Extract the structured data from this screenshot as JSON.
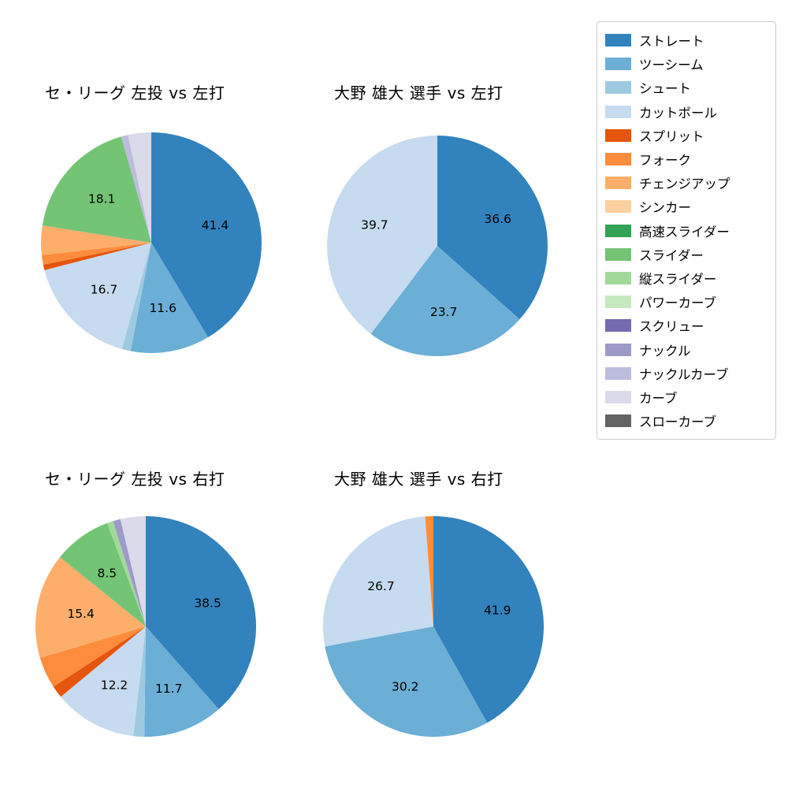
{
  "figure": {
    "background": "#ffffff"
  },
  "legend": {
    "position": "upper right",
    "items": [
      {
        "label": "ストレート",
        "color": "#3182bd"
      },
      {
        "label": "ツーシーム",
        "color": "#6baed6"
      },
      {
        "label": "シュート",
        "color": "#9ecae1"
      },
      {
        "label": "カットボール",
        "color": "#c6dbef"
      },
      {
        "label": "スプリット",
        "color": "#e6550d"
      },
      {
        "label": "フォーク",
        "color": "#fd8d3c"
      },
      {
        "label": "チェンジアップ",
        "color": "#fdae6b"
      },
      {
        "label": "シンカー",
        "color": "#fdd0a2"
      },
      {
        "label": "高速スライダー",
        "color": "#31a354"
      },
      {
        "label": "スライダー",
        "color": "#74c476"
      },
      {
        "label": "縦スライダー",
        "color": "#a1d99b"
      },
      {
        "label": "パワーカーブ",
        "color": "#c7e9c0"
      },
      {
        "label": "スクリュー",
        "color": "#756bb1"
      },
      {
        "label": "ナックル",
        "color": "#9e9ac8"
      },
      {
        "label": "ナックルカーブ",
        "color": "#bcbddc"
      },
      {
        "label": "カーブ",
        "color": "#dadaeb"
      },
      {
        "label": "スローカーブ",
        "color": "#636363"
      }
    ]
  },
  "chart_data": [
    {
      "type": "pie",
      "title": "セ・リーグ 左投 vs 左打",
      "start_angle_deg": 90,
      "direction": "clockwise",
      "slices": [
        {
          "name": "ストレート",
          "value": 41.4,
          "label": "41.4"
        },
        {
          "name": "ツーシーム",
          "value": 11.6,
          "label": "11.6"
        },
        {
          "name": "シュート",
          "value": 1.3,
          "label": ""
        },
        {
          "name": "カットボール",
          "value": 16.7,
          "label": "16.7"
        },
        {
          "name": "スプリット",
          "value": 0.8,
          "label": ""
        },
        {
          "name": "フォーク",
          "value": 1.4,
          "label": ""
        },
        {
          "name": "チェンジアップ",
          "value": 4.3,
          "label": ""
        },
        {
          "name": "スライダー",
          "value": 18.1,
          "label": "18.1"
        },
        {
          "name": "ナックルカーブ",
          "value": 1.0,
          "label": ""
        },
        {
          "name": "カーブ",
          "value": 3.4,
          "label": ""
        }
      ]
    },
    {
      "type": "pie",
      "title": "大野 雄大 選手 vs 左打",
      "start_angle_deg": 90,
      "direction": "clockwise",
      "slices": [
        {
          "name": "ストレート",
          "value": 36.6,
          "label": "36.6"
        },
        {
          "name": "ツーシーム",
          "value": 23.7,
          "label": "23.7"
        },
        {
          "name": "カットボール",
          "value": 39.7,
          "label": "39.7"
        }
      ]
    },
    {
      "type": "pie",
      "title": "セ・リーグ 左投 vs 右打",
      "start_angle_deg": 90,
      "direction": "clockwise",
      "slices": [
        {
          "name": "ストレート",
          "value": 38.5,
          "label": "38.5"
        },
        {
          "name": "ツーシーム",
          "value": 11.7,
          "label": "11.7"
        },
        {
          "name": "シュート",
          "value": 1.6,
          "label": ""
        },
        {
          "name": "カットボール",
          "value": 12.2,
          "label": "12.2"
        },
        {
          "name": "スプリット",
          "value": 1.8,
          "label": ""
        },
        {
          "name": "フォーク",
          "value": 4.6,
          "label": ""
        },
        {
          "name": "チェンジアップ",
          "value": 15.4,
          "label": "15.4"
        },
        {
          "name": "スライダー",
          "value": 8.5,
          "label": "8.5"
        },
        {
          "name": "縦スライダー",
          "value": 0.9,
          "label": ""
        },
        {
          "name": "ナックル",
          "value": 1.1,
          "label": ""
        },
        {
          "name": "カーブ",
          "value": 3.7,
          "label": ""
        }
      ]
    },
    {
      "type": "pie",
      "title": "大野 雄大 選手 vs 右打",
      "start_angle_deg": 90,
      "direction": "clockwise",
      "slices": [
        {
          "name": "ストレート",
          "value": 41.9,
          "label": "41.9"
        },
        {
          "name": "ツーシーム",
          "value": 30.2,
          "label": "30.2"
        },
        {
          "name": "カットボール",
          "value": 26.7,
          "label": "26.7"
        },
        {
          "name": "フォーク",
          "value": 1.2,
          "label": ""
        }
      ]
    }
  ]
}
